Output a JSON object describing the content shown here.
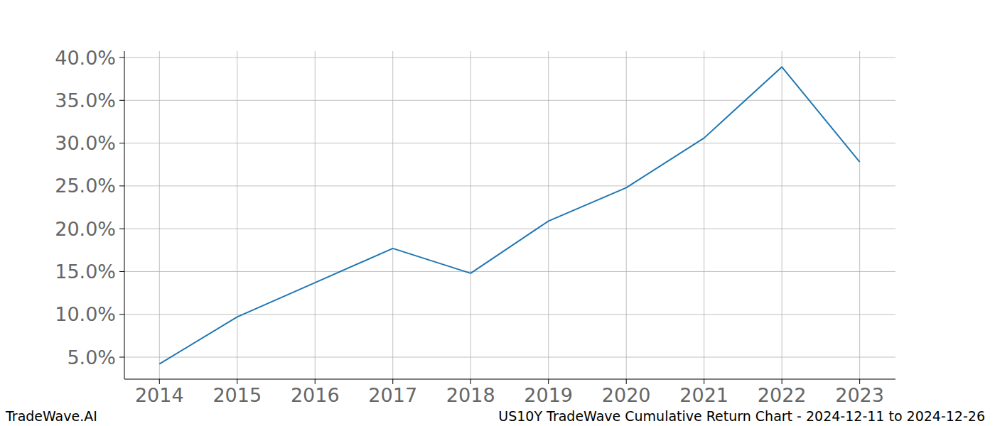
{
  "chart_data": {
    "type": "line",
    "title": "US10Y TradeWave Cumulative Return Chart - 2024-12-11 to 2024-12-26",
    "source": "TradeWave.AI",
    "x": [
      2014,
      2015,
      2016,
      2017,
      2018,
      2019,
      2020,
      2021,
      2022,
      2023
    ],
    "series": [
      {
        "name": "US10Y",
        "color": "#1f77b4",
        "values": [
          4.2,
          9.7,
          13.7,
          17.7,
          14.8,
          20.9,
          24.8,
          30.6,
          38.9,
          27.8
        ]
      }
    ],
    "xlim": [
      2013.55,
      2023.46
    ],
    "xticks": [
      2014,
      2015,
      2016,
      2017,
      2018,
      2019,
      2020,
      2021,
      2022,
      2023
    ],
    "ylim": [
      2.43,
      40.75
    ],
    "yticks": [
      {
        "value": 5,
        "label": "5.0%"
      },
      {
        "value": 10,
        "label": "10.0%"
      },
      {
        "value": 15,
        "label": "15.0%"
      },
      {
        "value": 20,
        "label": "20.0%"
      },
      {
        "value": 25,
        "label": "25.0%"
      },
      {
        "value": 30,
        "label": "30.0%"
      },
      {
        "value": 35,
        "label": "35.0%"
      },
      {
        "value": 40,
        "label": "40.0%"
      }
    ],
    "grid": true
  }
}
